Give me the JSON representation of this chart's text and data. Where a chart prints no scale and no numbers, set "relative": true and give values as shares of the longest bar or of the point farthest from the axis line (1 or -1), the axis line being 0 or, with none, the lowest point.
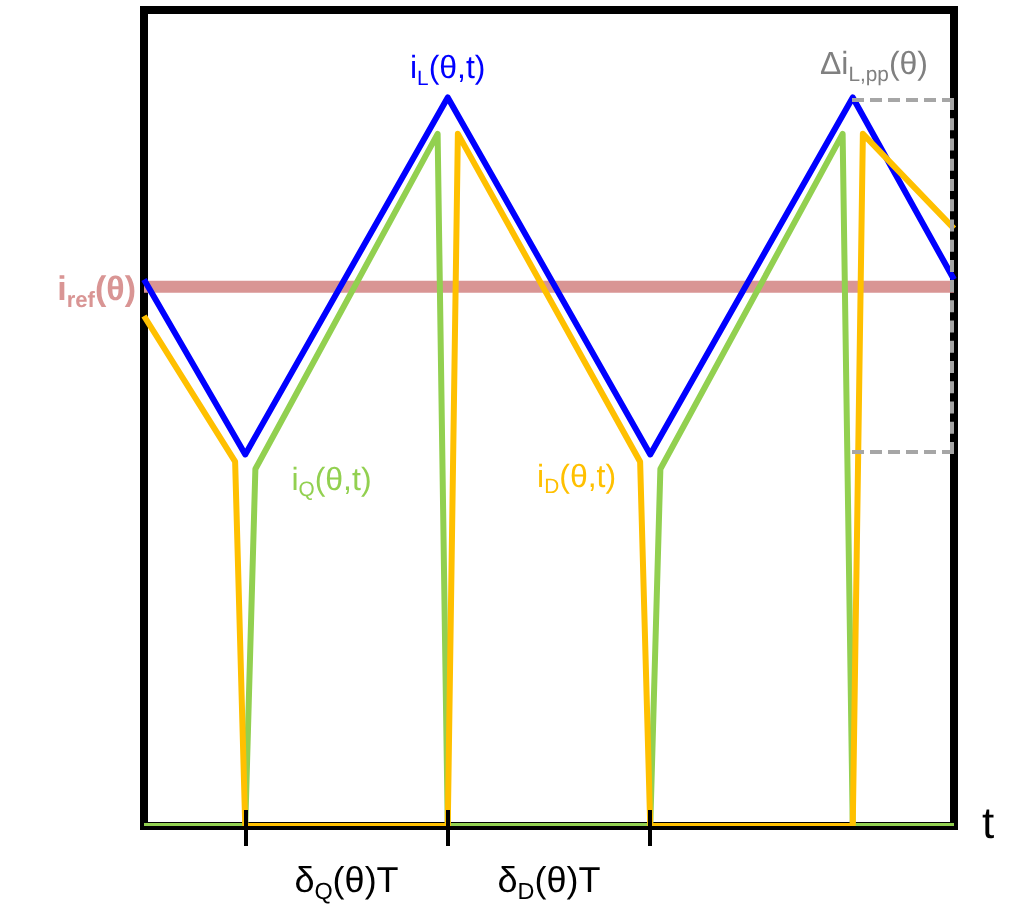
{
  "chart_data": {
    "type": "line",
    "relative": true,
    "xlabel": "t",
    "categories": [
      null,
      null,
      null,
      null,
      null,
      null,
      null,
      null,
      null,
      null,
      null,
      null,
      null,
      null,
      null,
      null,
      null,
      null,
      null,
      null,
      null,
      null,
      null,
      null,
      null,
      null,
      null,
      null,
      null,
      null,
      null,
      null,
      null,
      null,
      null,
      null,
      null,
      null,
      null,
      null,
      null,
      null,
      null,
      null,
      null,
      null,
      null,
      null,
      null,
      null,
      null,
      null,
      null,
      null,
      null,
      null,
      null,
      null,
      null,
      null,
      null,
      null,
      null,
      null,
      null,
      null,
      null,
      null,
      null,
      null,
      null,
      null,
      null,
      null,
      null,
      null,
      null,
      null,
      null,
      null,
      null
    ],
    "grid": false,
    "legend": false,
    "marker": "none",
    "line_style": "solid",
    "series": [
      {
        "name": "i$_{D}$(θ,t)",
        "color": "#ffc000",
        "values": [
          0.7,
          null,
          null,
          null,
          null,
          null,
          null,
          null,
          null,
          0.5,
          0,
          null,
          null,
          null,
          null,
          null,
          null,
          null,
          null,
          null,
          null,
          null,
          null,
          null,
          null,
          null,
          null,
          null,
          null,
          null,
          0,
          0.95,
          null,
          null,
          null,
          null,
          null,
          null,
          null,
          null,
          null,
          null,
          null,
          null,
          null,
          null,
          null,
          null,
          null,
          0.5,
          0,
          null,
          null,
          null,
          null,
          null,
          null,
          null,
          null,
          null,
          null,
          null,
          null,
          null,
          null,
          null,
          null,
          null,
          null,
          null,
          0,
          0.95,
          null,
          null,
          null,
          null,
          null,
          null,
          null,
          null,
          0.82
        ]
      },
      {
        "name": "i$_{Q}$(θ,t)",
        "color": "#92d050",
        "values": [
          0,
          null,
          null,
          null,
          null,
          null,
          null,
          null,
          null,
          null,
          0,
          0.49,
          null,
          null,
          null,
          null,
          null,
          null,
          null,
          null,
          null,
          null,
          null,
          null,
          null,
          null,
          null,
          null,
          null,
          0.95,
          0,
          null,
          null,
          null,
          null,
          null,
          null,
          null,
          null,
          null,
          null,
          null,
          null,
          null,
          null,
          null,
          null,
          null,
          null,
          null,
          0,
          0.49,
          null,
          null,
          null,
          null,
          null,
          null,
          null,
          null,
          null,
          null,
          null,
          null,
          null,
          null,
          null,
          null,
          null,
          0.95,
          0,
          null,
          null,
          null,
          null,
          null,
          null,
          null,
          null,
          null,
          0
        ]
      },
      {
        "name": "i$_{L}$(θ,t)",
        "color": "#0000ff",
        "values": [
          0.75,
          null,
          null,
          null,
          null,
          null,
          null,
          null,
          null,
          null,
          0.51,
          null,
          null,
          null,
          null,
          null,
          null,
          null,
          null,
          null,
          null,
          null,
          null,
          null,
          null,
          null,
          null,
          null,
          null,
          null,
          1,
          null,
          null,
          null,
          null,
          null,
          null,
          null,
          null,
          null,
          null,
          null,
          null,
          null,
          null,
          null,
          null,
          null,
          null,
          null,
          0.51,
          null,
          null,
          null,
          null,
          null,
          null,
          null,
          null,
          null,
          null,
          null,
          null,
          null,
          null,
          null,
          null,
          null,
          null,
          null,
          1,
          null,
          null,
          null,
          null,
          null,
          null,
          null,
          null,
          null,
          0.75
        ]
      }
    ],
    "ref_lines": [
      {
        "axis": "y",
        "value": 0.74,
        "label": "i$_{ref}$(θ)",
        "color": "#d99594"
      }
    ],
    "annotations": [
      "Δi$_{L,pp}$(θ)",
      "δ$_{Q}$(θ)T",
      "δ$_{D}$(θ)T"
    ]
  }
}
